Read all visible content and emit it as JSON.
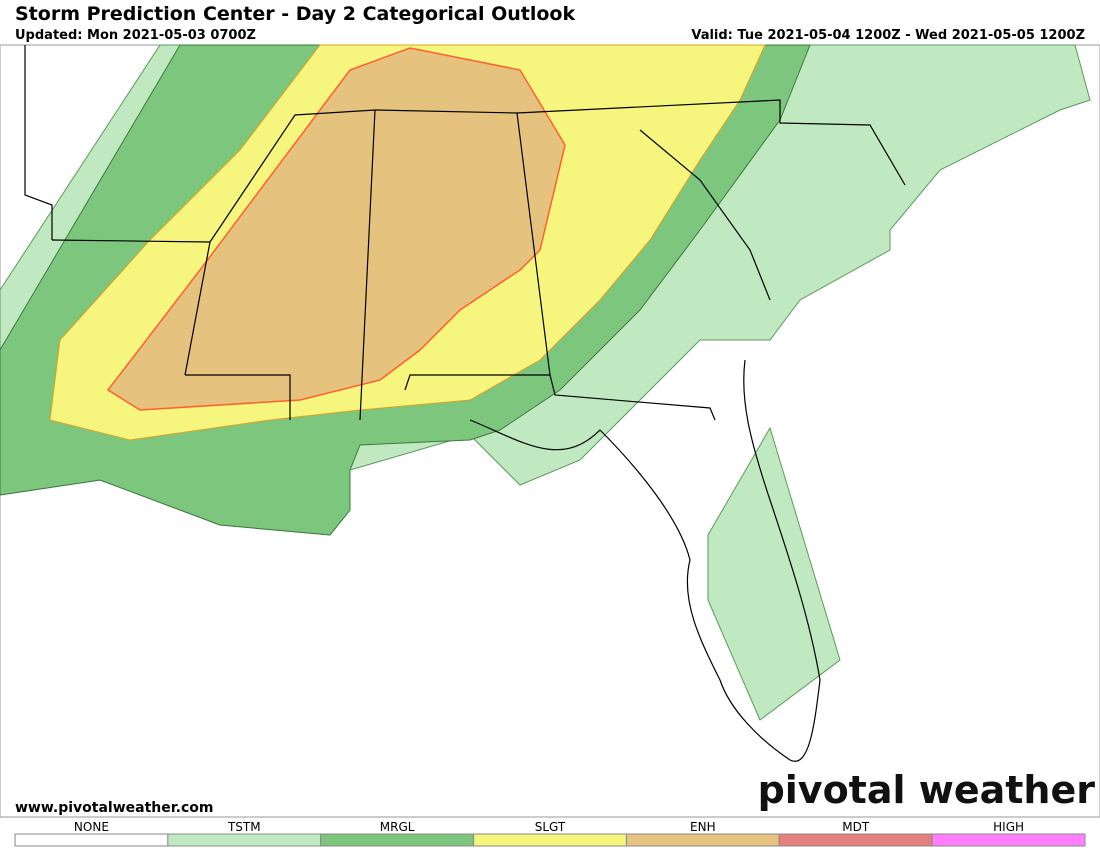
{
  "header": {
    "title": "Storm Prediction Center - Day 2 Categorical Outlook",
    "updated": "Updated: Mon 2021-05-03 0700Z",
    "valid": "Valid: Tue 2021-05-04 1200Z - Wed 2021-05-05 1200Z"
  },
  "footer": {
    "website": "www.pivotalweather.com",
    "brand": "pivotal weather"
  },
  "legend": [
    {
      "label": "NONE",
      "color": "#ffffff"
    },
    {
      "label": "TSTM",
      "color": "#c1e9c1"
    },
    {
      "label": "MRGL",
      "color": "#7dc67d"
    },
    {
      "label": "SLGT",
      "color": "#f6f67f"
    },
    {
      "label": "ENH",
      "color": "#e6c27f"
    },
    {
      "label": "MDT",
      "color": "#e67f7f"
    },
    {
      "label": "HIGH",
      "color": "#ff7fff"
    }
  ]
}
